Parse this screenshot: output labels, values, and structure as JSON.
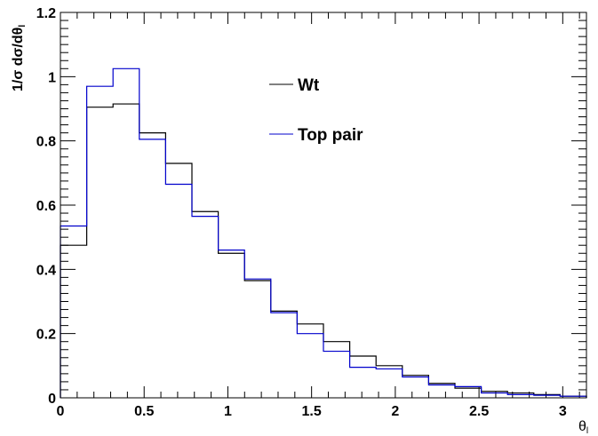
{
  "chart_data": {
    "type": "line",
    "title": "",
    "xlabel": "θ",
    "xlabel_subscript": "l",
    "ylabel": "1/σ dσ/dθ",
    "ylabel_subscript": "l",
    "xlim": [
      0,
      3.1416
    ],
    "ylim": [
      0,
      1.2
    ],
    "x_ticks": [
      {
        "value": 0,
        "label": "0"
      },
      {
        "value": 0.5,
        "label": "0.5"
      },
      {
        "value": 1,
        "label": "1"
      },
      {
        "value": 1.5,
        "label": "1.5"
      },
      {
        "value": 2,
        "label": "2"
      },
      {
        "value": 2.5,
        "label": "2.5"
      },
      {
        "value": 3,
        "label": "3"
      }
    ],
    "y_ticks": [
      {
        "value": 0,
        "label": "0"
      },
      {
        "value": 0.2,
        "label": "0.2"
      },
      {
        "value": 0.4,
        "label": "0.4"
      },
      {
        "value": 0.6,
        "label": "0.6"
      },
      {
        "value": 0.8,
        "label": "0.8"
      },
      {
        "value": 1,
        "label": "1"
      },
      {
        "value": 1.2,
        "label": "1.2"
      }
    ],
    "bin_edges": [
      0,
      0.1571,
      0.3142,
      0.4712,
      0.6283,
      0.7854,
      0.9425,
      1.0996,
      1.2566,
      1.4137,
      1.5708,
      1.7279,
      1.885,
      2.042,
      2.1991,
      2.3562,
      2.5133,
      2.6704,
      2.8274,
      2.9845,
      3.1416
    ],
    "grid": false,
    "legend_position": "upper-middle",
    "series": [
      {
        "name": "Wt",
        "color": "#000000",
        "values": [
          0.475,
          0.905,
          0.915,
          0.825,
          0.73,
          0.58,
          0.45,
          0.365,
          0.27,
          0.23,
          0.175,
          0.13,
          0.1,
          0.07,
          0.045,
          0.03,
          0.02,
          0.015,
          0.01,
          0.005
        ]
      },
      {
        "name": "Top pair",
        "color": "#0000cc",
        "values": [
          0.535,
          0.97,
          1.025,
          0.805,
          0.665,
          0.565,
          0.46,
          0.37,
          0.265,
          0.2,
          0.145,
          0.095,
          0.09,
          0.065,
          0.04,
          0.035,
          0.015,
          0.01,
          0.008,
          0.005
        ]
      }
    ]
  }
}
